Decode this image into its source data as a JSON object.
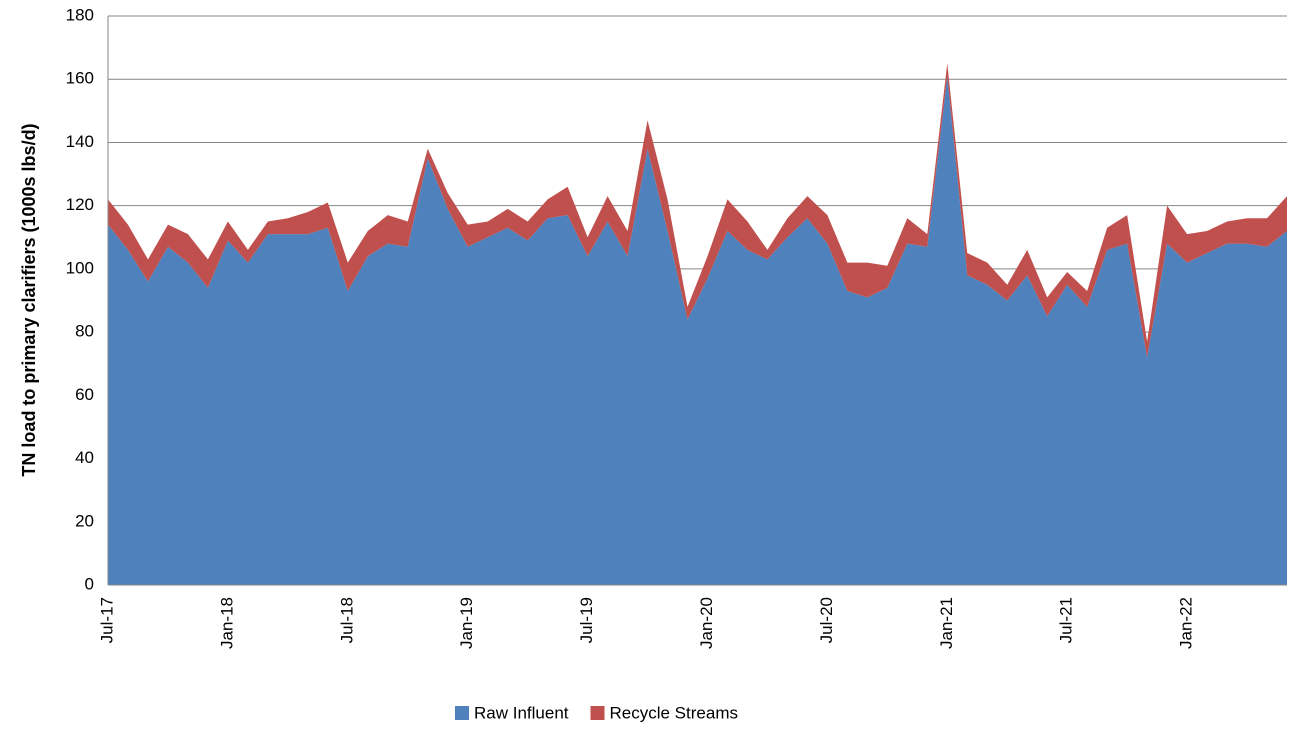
{
  "chart_data": {
    "type": "stacked_area",
    "y_label": "TN load to primary clarifiers (1000s lbs/d)",
    "categories": [
      "Jul-17",
      null,
      null,
      null,
      null,
      null,
      "Jan-18",
      null,
      null,
      null,
      null,
      null,
      "Jul-18",
      null,
      null,
      null,
      null,
      null,
      "Jan-19",
      null,
      null,
      null,
      null,
      null,
      "Jul-19",
      null,
      null,
      null,
      null,
      null,
      "Jan-20",
      null,
      null,
      null,
      null,
      null,
      "Jul-20",
      null,
      null,
      null,
      null,
      null,
      "Jan-21",
      null,
      null,
      null,
      null,
      null,
      "Jul-21",
      null,
      null,
      null,
      null,
      null,
      "Jan-22",
      null,
      null,
      null,
      null,
      null
    ],
    "series": [
      {
        "name": "Raw Influent",
        "color": "#4f81bd",
        "values": [
          114,
          106,
          96,
          107,
          102,
          94,
          109,
          102,
          111,
          111,
          111,
          113,
          93,
          104,
          108,
          107,
          135,
          119,
          107,
          110,
          113,
          109,
          116,
          117,
          104,
          115,
          104,
          138,
          112,
          84,
          97,
          112,
          106,
          103,
          110,
          116,
          108,
          93,
          91,
          94,
          108,
          107,
          161,
          98,
          95,
          90,
          98,
          85,
          95,
          88,
          106,
          108,
          72,
          108,
          102,
          105,
          108,
          108,
          107,
          112
        ]
      },
      {
        "name": "Recycle Streams",
        "color": "#c0504d",
        "values": [
          8,
          8,
          7,
          7,
          9,
          9,
          6,
          4,
          4,
          5,
          7,
          8,
          9,
          8,
          9,
          8,
          3,
          5,
          7,
          5,
          6,
          6,
          6,
          9,
          6,
          8,
          8,
          9,
          10,
          4,
          7,
          10,
          9,
          3,
          6,
          7,
          9,
          9,
          11,
          7,
          8,
          4,
          4,
          7,
          7,
          5,
          8,
          6,
          4,
          5,
          7,
          9,
          5,
          12,
          9,
          7,
          7,
          8,
          9,
          11
        ]
      }
    ],
    "ylim": [
      0,
      180
    ],
    "yticks": [
      0,
      20,
      40,
      60,
      80,
      100,
      120,
      140,
      160,
      180
    ],
    "grid": true,
    "legend": "bottom"
  }
}
